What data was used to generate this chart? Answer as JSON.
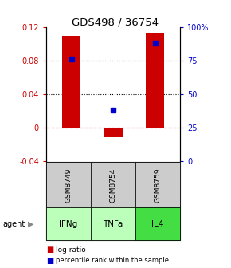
{
  "title": "GDS498 / 36754",
  "samples": [
    "GSM8749",
    "GSM8754",
    "GSM8759"
  ],
  "agents": [
    "IFNg",
    "TNFa",
    "IL4"
  ],
  "log_ratios": [
    0.109,
    -0.012,
    0.112
  ],
  "percentile_ranks_pct": [
    76,
    38,
    88
  ],
  "bar_color": "#cc0000",
  "dot_color": "#0000cc",
  "agent_colors": [
    "#bbffbb",
    "#bbffbb",
    "#44dd44"
  ],
  "sample_box_color": "#cccccc",
  "ylim_left": [
    -0.04,
    0.12
  ],
  "ylim_right": [
    0,
    100
  ],
  "yticks_left": [
    -0.04,
    0,
    0.04,
    0.08,
    0.12
  ],
  "yticks_right": [
    0,
    25,
    50,
    75,
    100
  ],
  "ytick_labels_left": [
    "-0.04",
    "0",
    "0.04",
    "0.08",
    "0.12"
  ],
  "ytick_labels_right": [
    "0",
    "25",
    "50",
    "75",
    "100%"
  ],
  "hline_dotted_values": [
    0.04,
    0.08
  ],
  "hline_dashed_value": 0,
  "bar_color_hex": "#cc0000",
  "dot_color_hex": "#0000cc"
}
